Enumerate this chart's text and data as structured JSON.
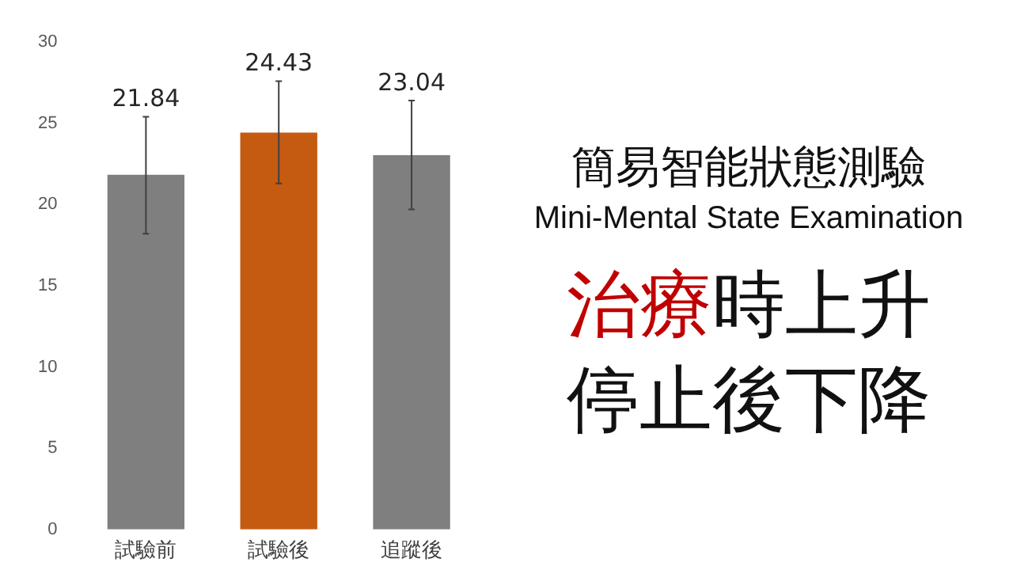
{
  "chart_data": {
    "type": "bar",
    "title": "簡易智能狀態測驗",
    "subtitle": "Mini-Mental State Examination",
    "annotations": [
      "治療時上升",
      "停止後下降"
    ],
    "categories": [
      "試驗前",
      "試驗後",
      "追蹤後"
    ],
    "values": [
      21.84,
      24.43,
      23.04
    ],
    "colors": [
      "#7f7f7f",
      "#c55a11",
      "#7f7f7f"
    ],
    "errors": [
      [
        18.2,
        25.4
      ],
      [
        21.3,
        27.6
      ],
      [
        19.7,
        26.4
      ]
    ],
    "data_labels": true,
    "ylim": [
      0,
      30
    ],
    "yticks": [
      0,
      5,
      10,
      15,
      20,
      25,
      30
    ],
    "grid": false
  }
}
